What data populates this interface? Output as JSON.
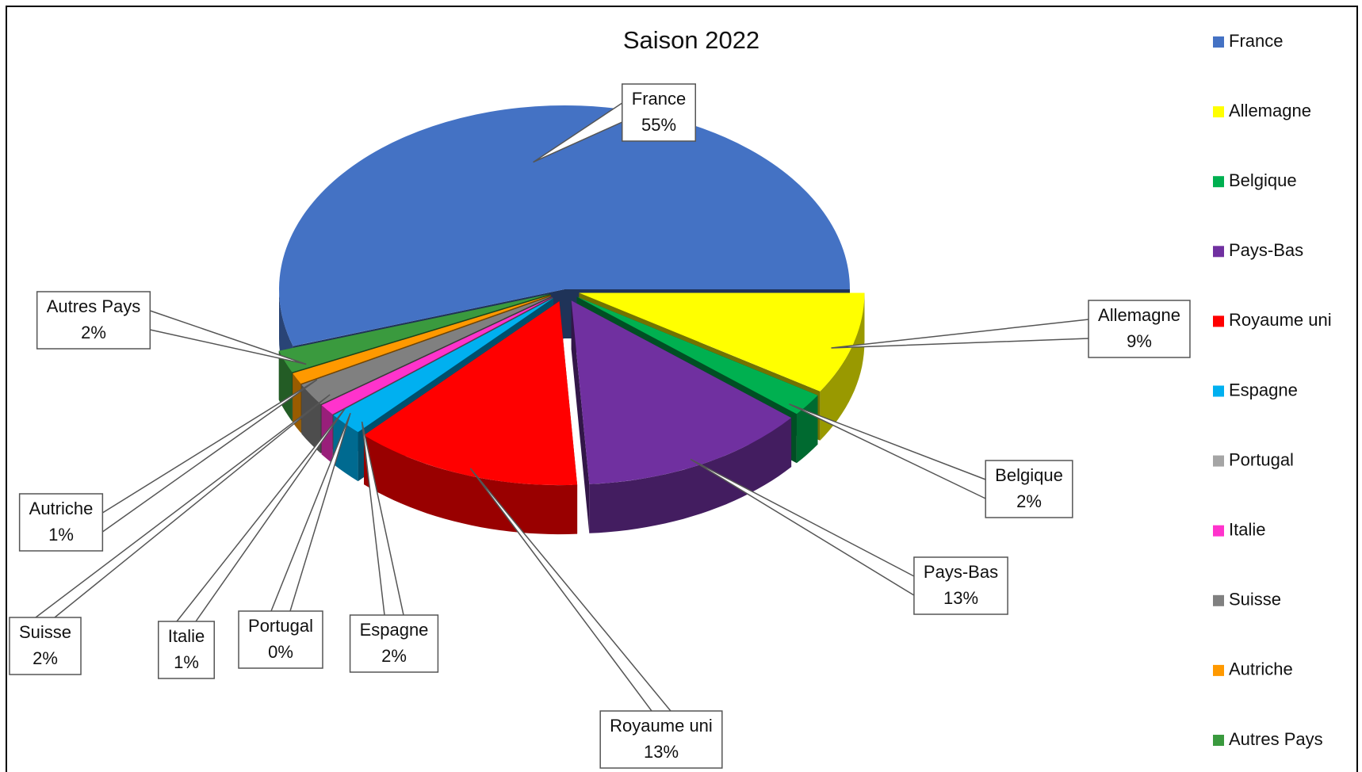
{
  "chart_data": {
    "type": "pie3d",
    "title": "Saison 2022",
    "categories": [
      "France",
      "Allemagne",
      "Belgique",
      "Pays-Bas",
      "Royaume uni",
      "Espagne",
      "Portugal",
      "Italie",
      "Suisse",
      "Autriche",
      "Autres Pays"
    ],
    "values": [
      55,
      9,
      2,
      13,
      13,
      2,
      0,
      1,
      2,
      1,
      2
    ],
    "value_labels": [
      "55%",
      "9%",
      "2%",
      "13%",
      "13%",
      "2%",
      "0%",
      "1%",
      "2%",
      "1%",
      "2%"
    ],
    "colors": [
      "#4472c4",
      "#ffff00",
      "#00b050",
      "#7030a0",
      "#ff0000",
      "#00b0f0",
      "#a5a5a5",
      "#ff33cc",
      "#808080",
      "#ff9900",
      "#3a9a3e"
    ],
    "legend": "right"
  }
}
